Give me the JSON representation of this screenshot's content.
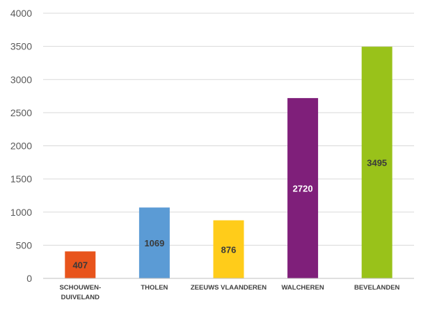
{
  "chart_data": {
    "type": "bar",
    "title": "",
    "xlabel": "",
    "ylabel": "",
    "ylim": [
      0,
      4000
    ],
    "yticks": [
      0,
      500,
      1000,
      1500,
      2000,
      2500,
      3000,
      3500,
      4000
    ],
    "grid": true,
    "categories": [
      [
        "SCHOUWEN-",
        "DUIVELAND"
      ],
      [
        "THOLEN"
      ],
      [
        "ZEEUWS VLAANDEREN"
      ],
      [
        "WALCHEREN"
      ],
      [
        "BEVELANDEN"
      ]
    ],
    "values": [
      407,
      1069,
      876,
      2720,
      3495
    ],
    "bar_colors": [
      "#e8541c",
      "#5b9bd5",
      "#ffcc1a",
      "#7f1f7a",
      "#99c21a"
    ],
    "label_colors": [
      "#3a3a3a",
      "#3a3a3a",
      "#3a3a3a",
      "#ffffff",
      "#3a3a3a"
    ]
  }
}
